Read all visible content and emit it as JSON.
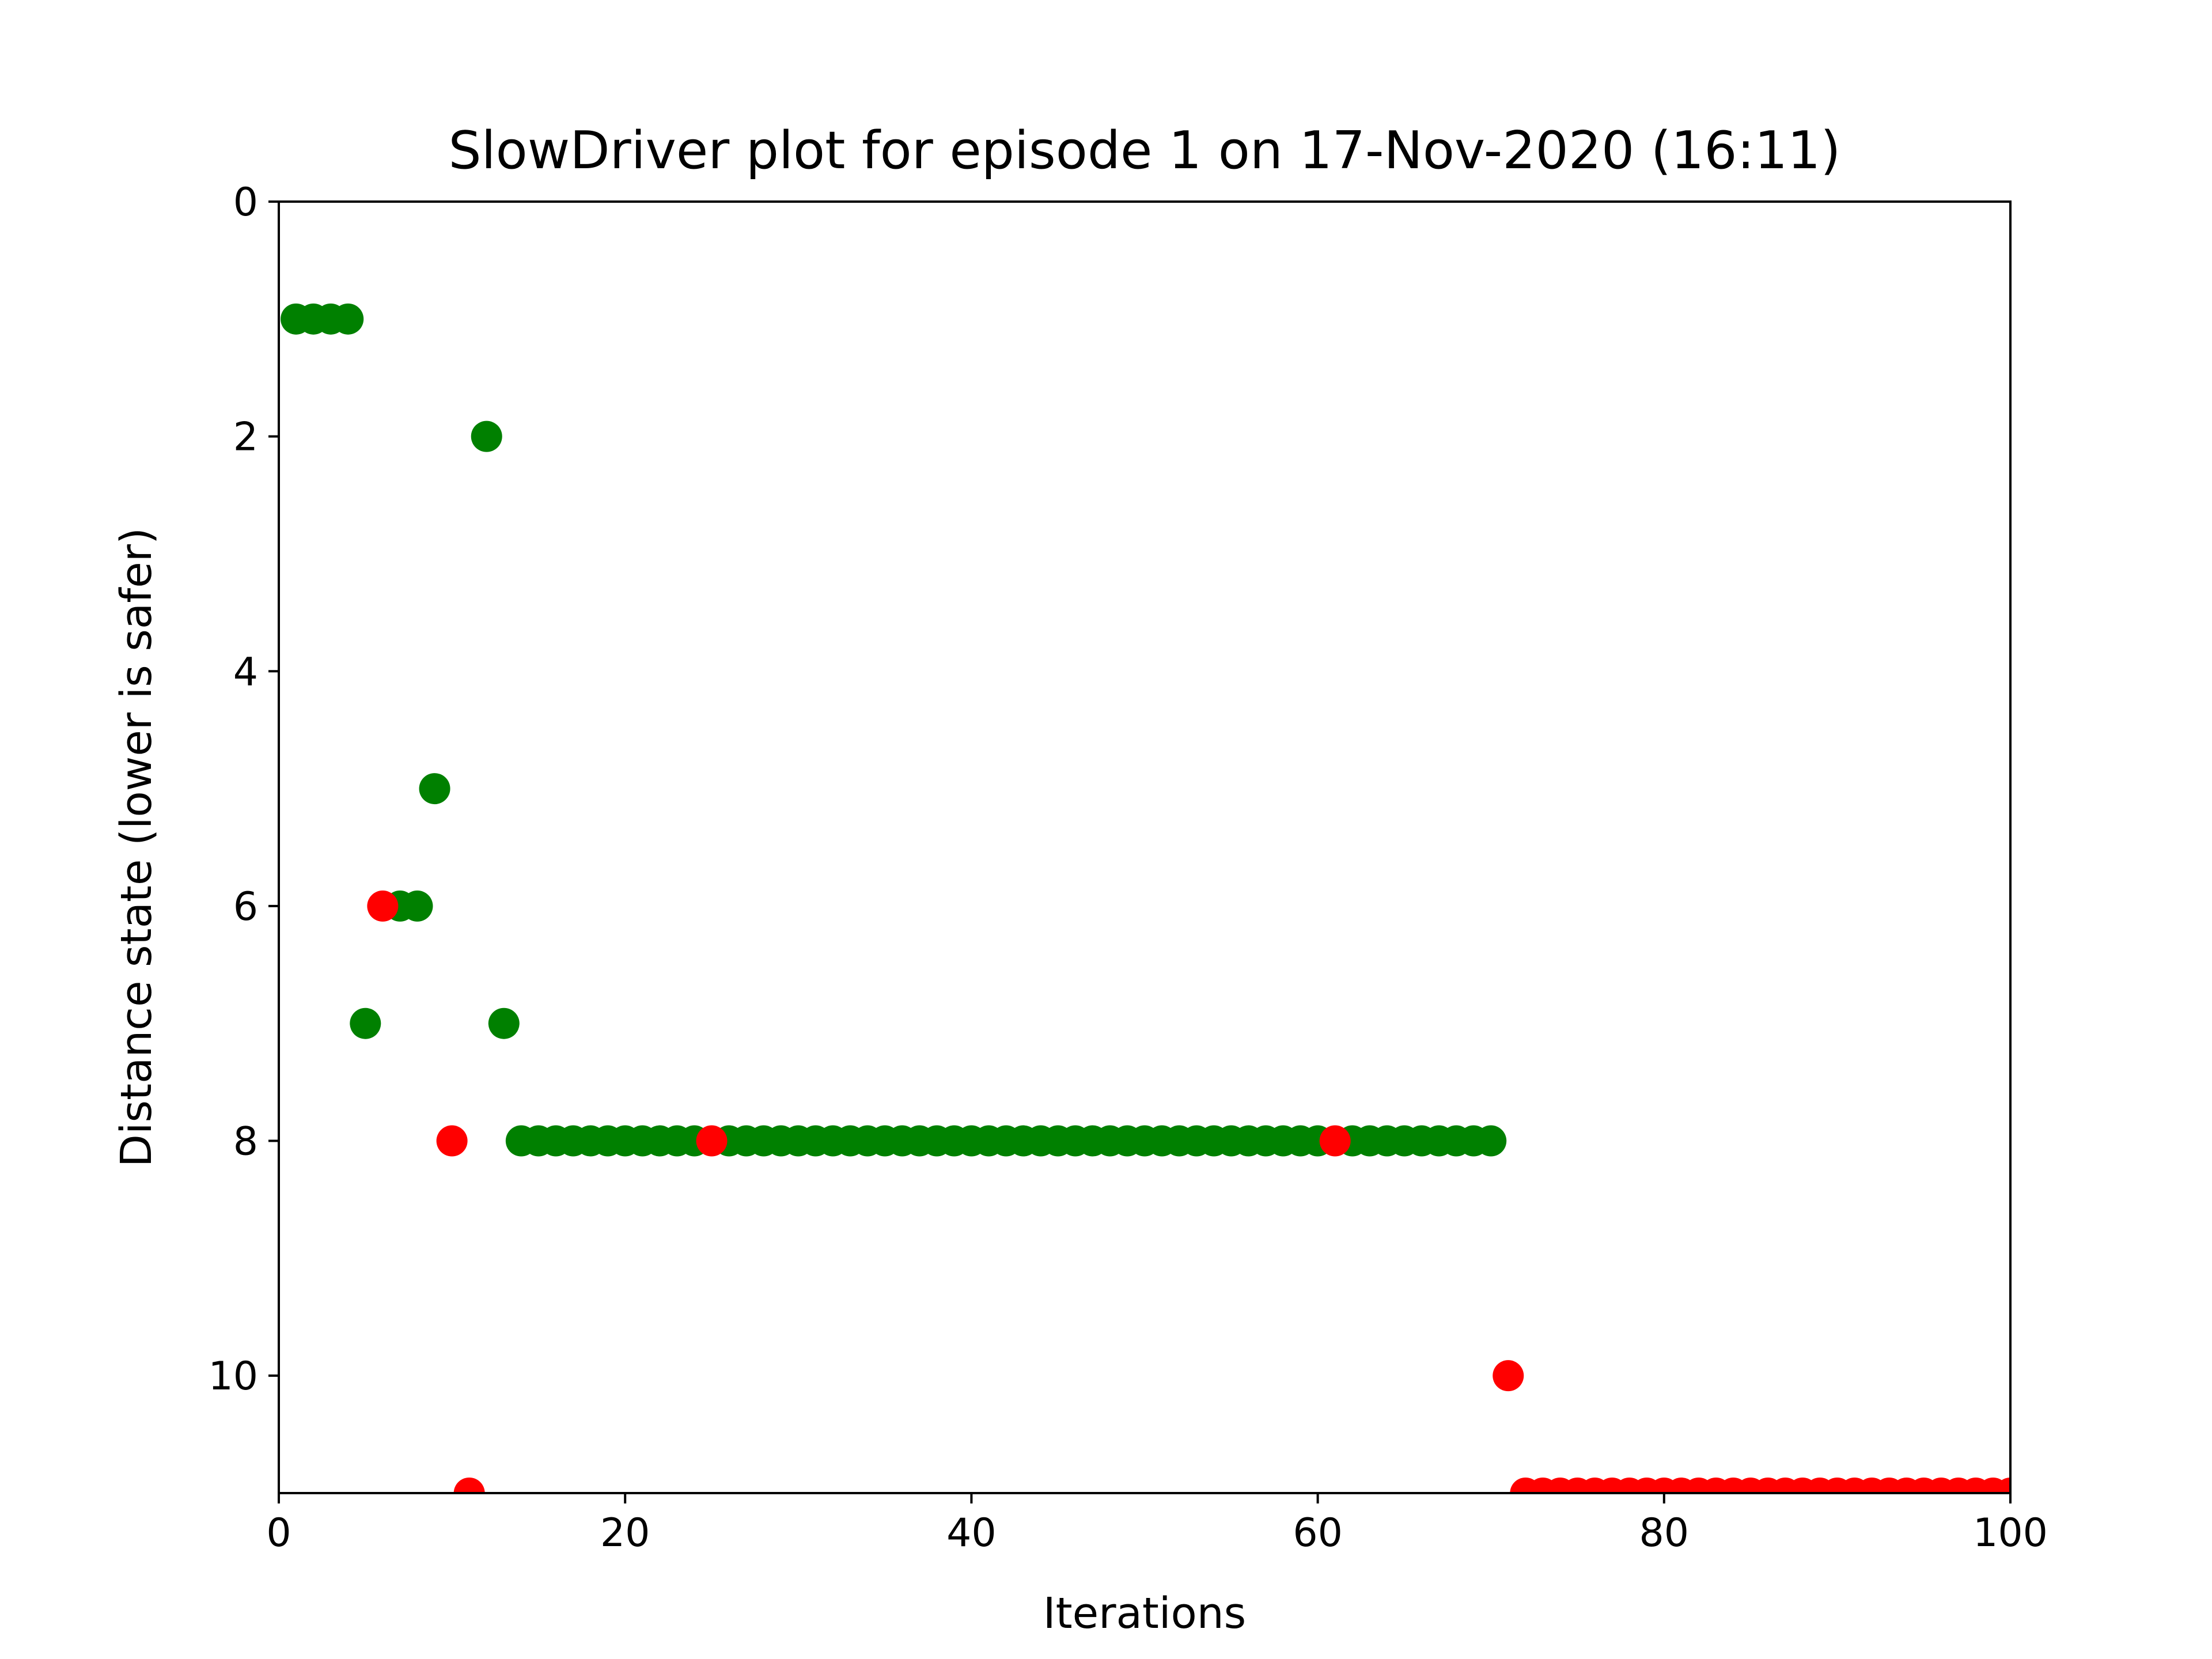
{
  "chart_data": {
    "type": "scatter",
    "title": "SlowDriver plot for episode 1 on 17-Nov-2020 (16:11)",
    "xlabel": "Iterations",
    "ylabel": "Distance state (lower is safer)",
    "xlim": [
      0,
      100
    ],
    "ylim": [
      0,
      11
    ],
    "y_inverted": true,
    "grid": false,
    "legend": "none",
    "x_ticks": [
      "0",
      "20",
      "40",
      "60",
      "80",
      "100"
    ],
    "y_ticks": [
      "0",
      "2",
      "4",
      "6",
      "8",
      "10"
    ],
    "colors": {
      "safe": "#008000",
      "unsafe": "#ff0000"
    },
    "series": [
      {
        "color": "#008000",
        "points": [
          [
            1,
            1
          ],
          [
            2,
            1
          ],
          [
            3,
            1
          ],
          [
            4,
            1
          ],
          [
            5,
            7
          ],
          [
            7,
            6
          ],
          [
            8,
            6
          ],
          [
            9,
            5
          ],
          [
            12,
            2
          ],
          [
            13,
            7
          ],
          [
            14,
            8
          ],
          [
            15,
            8
          ],
          [
            16,
            8
          ],
          [
            17,
            8
          ],
          [
            18,
            8
          ],
          [
            19,
            8
          ],
          [
            20,
            8
          ],
          [
            21,
            8
          ],
          [
            22,
            8
          ],
          [
            23,
            8
          ],
          [
            24,
            8
          ],
          [
            26,
            8
          ],
          [
            27,
            8
          ],
          [
            28,
            8
          ],
          [
            29,
            8
          ],
          [
            30,
            8
          ],
          [
            31,
            8
          ],
          [
            32,
            8
          ],
          [
            33,
            8
          ],
          [
            34,
            8
          ],
          [
            35,
            8
          ],
          [
            36,
            8
          ],
          [
            37,
            8
          ],
          [
            38,
            8
          ],
          [
            39,
            8
          ],
          [
            40,
            8
          ],
          [
            41,
            8
          ],
          [
            42,
            8
          ],
          [
            43,
            8
          ],
          [
            44,
            8
          ],
          [
            45,
            8
          ],
          [
            46,
            8
          ],
          [
            47,
            8
          ],
          [
            48,
            8
          ],
          [
            49,
            8
          ],
          [
            50,
            8
          ],
          [
            51,
            8
          ],
          [
            52,
            8
          ],
          [
            53,
            8
          ],
          [
            54,
            8
          ],
          [
            55,
            8
          ],
          [
            56,
            8
          ],
          [
            57,
            8
          ],
          [
            58,
            8
          ],
          [
            59,
            8
          ],
          [
            60,
            8
          ],
          [
            62,
            8
          ],
          [
            63,
            8
          ],
          [
            64,
            8
          ],
          [
            65,
            8
          ],
          [
            66,
            8
          ],
          [
            67,
            8
          ],
          [
            68,
            8
          ],
          [
            69,
            8
          ],
          [
            70,
            8
          ]
        ]
      },
      {
        "color": "#ff0000",
        "points": [
          [
            6,
            6
          ],
          [
            10,
            8
          ],
          [
            11,
            11
          ],
          [
            25,
            8
          ],
          [
            61,
            8
          ],
          [
            71,
            10
          ],
          [
            72,
            11
          ],
          [
            73,
            11
          ],
          [
            74,
            11
          ],
          [
            75,
            11
          ],
          [
            76,
            11
          ],
          [
            77,
            11
          ],
          [
            78,
            11
          ],
          [
            79,
            11
          ],
          [
            80,
            11
          ],
          [
            81,
            11
          ],
          [
            82,
            11
          ],
          [
            83,
            11
          ],
          [
            84,
            11
          ],
          [
            85,
            11
          ],
          [
            86,
            11
          ],
          [
            87,
            11
          ],
          [
            88,
            11
          ],
          [
            89,
            11
          ],
          [
            90,
            11
          ],
          [
            91,
            11
          ],
          [
            92,
            11
          ],
          [
            93,
            11
          ],
          [
            94,
            11
          ],
          [
            95,
            11
          ],
          [
            96,
            11
          ],
          [
            97,
            11
          ],
          [
            98,
            11
          ],
          [
            99,
            11
          ],
          [
            100,
            11
          ]
        ]
      }
    ]
  }
}
